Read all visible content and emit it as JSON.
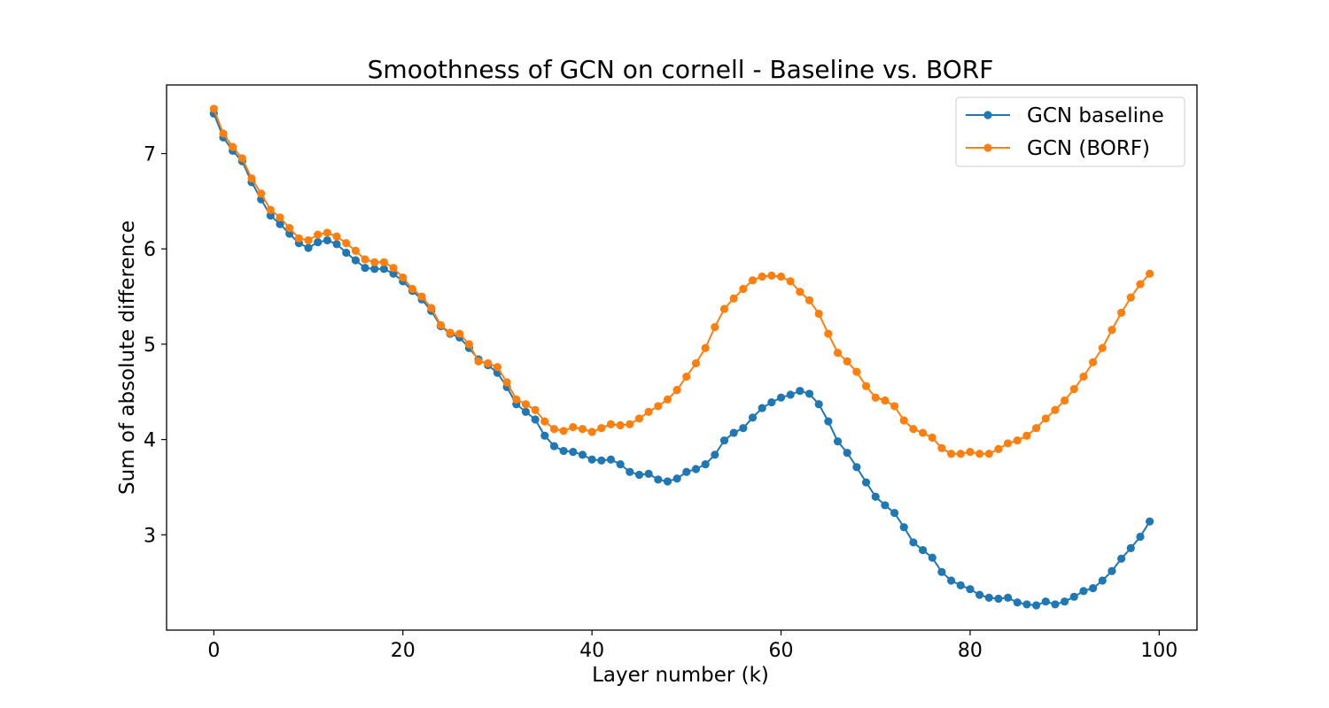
{
  "chart_data": {
    "type": "line",
    "title": "Smoothness of GCN on cornell - Baseline vs. BORF",
    "xlabel": "Layer number (k)",
    "ylabel": "Sum of absolute difference",
    "xlim": [
      -5,
      104
    ],
    "ylim": [
      2.0,
      7.72
    ],
    "x_ticks": [
      0,
      20,
      40,
      60,
      80,
      100
    ],
    "y_ticks": [
      3,
      4,
      5,
      6,
      7
    ],
    "grid": false,
    "legend_position": "upper-right",
    "series": [
      {
        "name": "GCN baseline",
        "color": "#1f77b4",
        "marker": "circle",
        "values": [
          7.42,
          7.17,
          7.03,
          6.92,
          6.7,
          6.52,
          6.35,
          6.26,
          6.16,
          6.06,
          6.01,
          6.07,
          6.09,
          6.05,
          5.96,
          5.88,
          5.8,
          5.79,
          5.79,
          5.74,
          5.66,
          5.56,
          5.47,
          5.35,
          5.19,
          5.11,
          5.07,
          4.96,
          4.84,
          4.78,
          4.7,
          4.55,
          4.37,
          4.29,
          4.21,
          4.04,
          3.93,
          3.88,
          3.87,
          3.84,
          3.79,
          3.78,
          3.79,
          3.74,
          3.66,
          3.63,
          3.64,
          3.58,
          3.56,
          3.59,
          3.66,
          3.69,
          3.74,
          3.84,
          3.99,
          4.07,
          4.12,
          4.23,
          4.33,
          4.39,
          4.44,
          4.47,
          4.51,
          4.48,
          4.37,
          4.19,
          3.98,
          3.86,
          3.71,
          3.55,
          3.4,
          3.31,
          3.23,
          3.08,
          2.92,
          2.84,
          2.76,
          2.61,
          2.52,
          2.47,
          2.43,
          2.37,
          2.34,
          2.33,
          2.34,
          2.29,
          2.27,
          2.26,
          2.3,
          2.27,
          2.3,
          2.35,
          2.41,
          2.44,
          2.52,
          2.62,
          2.75,
          2.86,
          2.98,
          3.14
        ]
      },
      {
        "name": "GCN (BORF)",
        "color": "#ff7f0e",
        "marker": "circle",
        "values": [
          7.47,
          7.21,
          7.07,
          6.95,
          6.74,
          6.58,
          6.41,
          6.33,
          6.22,
          6.11,
          6.09,
          6.15,
          6.17,
          6.13,
          6.06,
          5.98,
          5.89,
          5.86,
          5.86,
          5.8,
          5.7,
          5.58,
          5.5,
          5.38,
          5.2,
          5.12,
          5.11,
          5.0,
          4.82,
          4.8,
          4.76,
          4.6,
          4.42,
          4.37,
          4.31,
          4.19,
          4.11,
          4.09,
          4.13,
          4.11,
          4.08,
          4.12,
          4.16,
          4.15,
          4.16,
          4.22,
          4.29,
          4.35,
          4.42,
          4.52,
          4.66,
          4.8,
          4.96,
          5.18,
          5.37,
          5.48,
          5.58,
          5.67,
          5.71,
          5.72,
          5.71,
          5.66,
          5.55,
          5.46,
          5.32,
          5.11,
          4.91,
          4.82,
          4.71,
          4.56,
          4.44,
          4.41,
          4.35,
          4.2,
          4.11,
          4.07,
          4.02,
          3.91,
          3.85,
          3.85,
          3.87,
          3.85,
          3.85,
          3.9,
          3.96,
          3.99,
          4.04,
          4.12,
          4.22,
          4.31,
          4.41,
          4.53,
          4.66,
          4.81,
          4.96,
          5.15,
          5.33,
          5.49,
          5.63,
          5.74
        ]
      }
    ]
  }
}
